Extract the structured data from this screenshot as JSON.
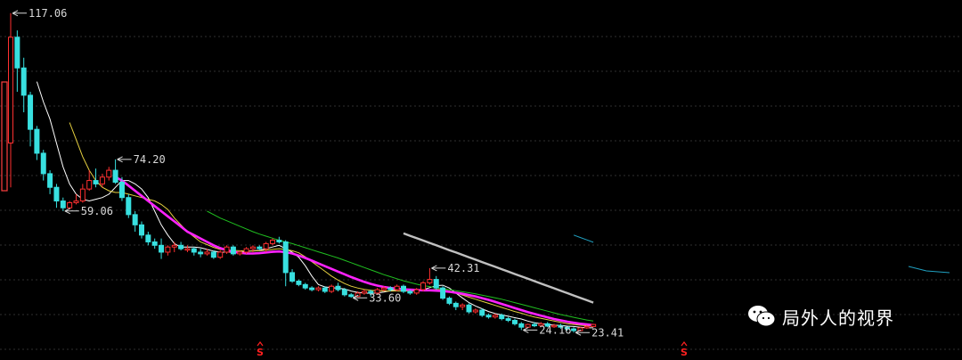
{
  "chart_data": {
    "type": "candlestick",
    "ylim": [
      20,
      120
    ],
    "grid": true,
    "colors": {
      "up": "#ff3030",
      "down": "#38e0e0",
      "ma5": "#ffffff",
      "ma10": "#e6d040",
      "ma20": "#ff22ff",
      "ma30": "#20c020",
      "ma60": "#c0c0c0",
      "ma120": "#20a0c0"
    },
    "annotations": [
      {
        "label": "117.06",
        "value": 117.06,
        "kind": "high"
      },
      {
        "label": "74.20",
        "value": 74.2,
        "kind": "high"
      },
      {
        "label": "59.06",
        "value": 59.06,
        "kind": "low"
      },
      {
        "label": "42.31",
        "value": 42.31,
        "kind": "high"
      },
      {
        "label": "33.60",
        "value": 33.6,
        "kind": "low"
      },
      {
        "label": "24.16",
        "value": 24.16,
        "kind": "low"
      },
      {
        "label": "23.41",
        "value": 23.41,
        "kind": "low"
      }
    ],
    "signals": [
      {
        "label": "S"
      },
      {
        "label": "S"
      }
    ],
    "series": [
      {
        "name": "candles",
        "values": [
          [
            79,
            117.06,
            66,
            110
          ],
          [
            110,
            112,
            94,
            101
          ],
          [
            101,
            104,
            88,
            93
          ],
          [
            93,
            94,
            78,
            83
          ],
          [
            83,
            84,
            74,
            76
          ],
          [
            76,
            77,
            68,
            70
          ],
          [
            70,
            71,
            64,
            66
          ],
          [
            66,
            67,
            60,
            62
          ],
          [
            62,
            63,
            59.06,
            60
          ],
          [
            60,
            62,
            59.5,
            61.5
          ],
          [
            61.5,
            64,
            61,
            62
          ],
          [
            62,
            67,
            61.5,
            65.5
          ],
          [
            65.5,
            71,
            65,
            68
          ],
          [
            68,
            71.5,
            66,
            67
          ],
          [
            67,
            70,
            66,
            69
          ],
          [
            69,
            72,
            68,
            71
          ],
          [
            71,
            74.2,
            67,
            67.5
          ],
          [
            67.5,
            69,
            62,
            63
          ],
          [
            63,
            64,
            57,
            58
          ],
          [
            58,
            59,
            53,
            55
          ],
          [
            55,
            56,
            51,
            52
          ],
          [
            52,
            53,
            49,
            50
          ],
          [
            50,
            51,
            48,
            49
          ],
          [
            49,
            51,
            45,
            47
          ],
          [
            47,
            49,
            46,
            48.5
          ],
          [
            48.5,
            50,
            47,
            49
          ],
          [
            49,
            50,
            47.5,
            48
          ],
          [
            48,
            49,
            47,
            48
          ],
          [
            48,
            48.5,
            46,
            47
          ],
          [
            47,
            48,
            45.5,
            46.5
          ],
          [
            46.5,
            48,
            46,
            47
          ],
          [
            47,
            47.5,
            45,
            45.5
          ],
          [
            45.5,
            47.5,
            45,
            47
          ],
          [
            47,
            49,
            46.5,
            48.5
          ],
          [
            48.5,
            49,
            46,
            46.5
          ],
          [
            46.5,
            47.5,
            46,
            47
          ],
          [
            47,
            48.5,
            46.5,
            48
          ],
          [
            48,
            49,
            47,
            48.5
          ],
          [
            48.5,
            49,
            47.5,
            48
          ],
          [
            48,
            50,
            47,
            49.5
          ],
          [
            49.5,
            51,
            49,
            50.5
          ],
          [
            50.5,
            51.5,
            49.5,
            50
          ],
          [
            50,
            50.5,
            37,
            41
          ],
          [
            41,
            42,
            38,
            38.5
          ],
          [
            38.5,
            39,
            37,
            37.5
          ],
          [
            37.5,
            38,
            36,
            36.5
          ],
          [
            36.5,
            37,
            35.5,
            36
          ],
          [
            36,
            37,
            35.5,
            36.5
          ],
          [
            36.5,
            37,
            35,
            35.5
          ],
          [
            35.5,
            37.5,
            35,
            37
          ],
          [
            37,
            38,
            35.5,
            36
          ],
          [
            36,
            36.5,
            34,
            34.5
          ],
          [
            34.5,
            35,
            33.6,
            34
          ],
          [
            34,
            35.5,
            33.8,
            35
          ],
          [
            35,
            36,
            34.5,
            35.5
          ],
          [
            35.5,
            36,
            34,
            35
          ],
          [
            35,
            36.5,
            34.5,
            36
          ],
          [
            36,
            37,
            35.5,
            36.5
          ],
          [
            36.5,
            37,
            35.5,
            36
          ],
          [
            36,
            37.5,
            35.5,
            37
          ],
          [
            37,
            37.5,
            35,
            35.5
          ],
          [
            35.5,
            36,
            34.5,
            35
          ],
          [
            35,
            36.5,
            34.5,
            36
          ],
          [
            36,
            38.5,
            35.5,
            38
          ],
          [
            38,
            42.31,
            37.5,
            39
          ],
          [
            39,
            40,
            36,
            36.5
          ],
          [
            36.5,
            37,
            33,
            33.5
          ],
          [
            33.5,
            34,
            31.5,
            32
          ],
          [
            32,
            32.5,
            30,
            31
          ],
          [
            31,
            32,
            30,
            31.5
          ],
          [
            31.5,
            32,
            29,
            29.5
          ],
          [
            29.5,
            30.5,
            29,
            30
          ],
          [
            30,
            30.5,
            28,
            28.5
          ],
          [
            28.5,
            29,
            27.5,
            28
          ],
          [
            28,
            29,
            27.5,
            28.5
          ],
          [
            28.5,
            29,
            27,
            27.5
          ],
          [
            27.5,
            28,
            26.5,
            27
          ],
          [
            27,
            27.5,
            25.5,
            26
          ],
          [
            26,
            26.5,
            24.16,
            25
          ],
          [
            25,
            26,
            24.8,
            25.8
          ],
          [
            25.8,
            26.5,
            25,
            25.5
          ],
          [
            25.5,
            26.5,
            25,
            26
          ],
          [
            26,
            26.5,
            25,
            25.3
          ],
          [
            25.3,
            26,
            24.8,
            25.5
          ],
          [
            25.5,
            26,
            24.5,
            25
          ],
          [
            25,
            25.5,
            24,
            24.5
          ],
          [
            24.5,
            25,
            23.41,
            24
          ],
          [
            24,
            25,
            23.8,
            24.8
          ],
          [
            24.8,
            25.5,
            24.5,
            25.2
          ],
          [
            25.2,
            26,
            25,
            25.8
          ]
        ]
      },
      {
        "name": "MA5",
        "values": [
          null,
          null,
          null,
          null,
          97,
          91,
          86,
          79,
          72,
          67,
          64,
          62.5,
          62,
          62.5,
          63,
          64,
          66,
          68,
          68,
          67,
          65.5,
          63,
          59,
          55,
          52,
          49.5,
          48.5,
          48.5,
          48.5,
          48.3,
          47.8,
          47.3,
          47,
          47,
          47,
          47,
          47.2,
          47.4,
          47.5,
          48,
          48.5,
          49,
          48,
          47,
          45.5,
          43,
          40,
          37.5,
          36.8,
          36.6,
          36.4,
          36.2,
          35.6,
          35.2,
          35,
          34.9,
          35,
          35.3,
          35.7,
          36,
          36.2,
          36,
          35.8,
          36,
          36.6,
          37.2,
          37.3,
          36.5,
          35,
          33.6,
          32.2,
          31.2,
          30.4,
          29.6,
          29,
          28.6,
          28.2,
          27.8,
          27.4,
          26.8,
          26.3,
          26,
          25.8,
          25.6,
          25.5,
          25.3,
          25.2,
          25,
          24.8,
          24.8
        ]
      },
      {
        "name": "MA10",
        "values": [
          null,
          null,
          null,
          null,
          null,
          null,
          null,
          null,
          null,
          85,
          80,
          75,
          71,
          68,
          66,
          65,
          64.5,
          64.5,
          64,
          63.5,
          63,
          62.5,
          62,
          61,
          59.5,
          57,
          55,
          53,
          51.5,
          50,
          49.2,
          48.4,
          47.8,
          47.6,
          47.5,
          47.4,
          47.3,
          47.3,
          47.4,
          47.6,
          47.8,
          48,
          47.8,
          47.4,
          46.8,
          45.6,
          44.2,
          42.8,
          41.4,
          40,
          38.8,
          37.8,
          37,
          36.5,
          36.1,
          35.8,
          35.7,
          35.6,
          35.6,
          35.6,
          35.6,
          35.6,
          35.6,
          35.7,
          35.9,
          36.1,
          36,
          35.6,
          35,
          34.4,
          33.8,
          33.2,
          32.6,
          32,
          31.4,
          30.8,
          30.2,
          29.6,
          29.1,
          28.5,
          28,
          27.6,
          27.2,
          26.8,
          26.4,
          26,
          25.8,
          25.6,
          25.4,
          25.3
        ]
      },
      {
        "name": "MA20",
        "values": [
          null,
          null,
          null,
          null,
          null,
          null,
          null,
          null,
          null,
          null,
          null,
          null,
          null,
          null,
          null,
          null,
          69,
          68,
          66.5,
          65,
          63.5,
          62,
          60.5,
          59,
          57.5,
          56,
          54.5,
          53,
          52,
          51,
          50,
          49,
          48.2,
          47.6,
          47.1,
          46.8,
          46.6,
          46.6,
          46.7,
          46.9,
          47.1,
          47.2,
          47,
          46.6,
          46,
          45.3,
          44.5,
          43.7,
          42.9,
          42.1,
          41.3,
          40.5,
          39.7,
          39,
          38.3,
          37.7,
          37.2,
          36.8,
          36.5,
          36.3,
          36.1,
          36,
          35.9,
          35.8,
          35.8,
          35.7,
          35.6,
          35.4,
          35.1,
          34.8,
          34.4,
          34,
          33.5,
          33,
          32.4,
          31.8,
          31.2,
          30.6,
          30,
          29.4,
          28.9,
          28.4,
          27.9,
          27.4,
          27,
          26.6,
          26.3,
          26,
          25.8,
          25.6
        ]
      },
      {
        "name": "MA30",
        "values": [
          null,
          null,
          null,
          null,
          null,
          null,
          null,
          null,
          null,
          null,
          null,
          null,
          null,
          null,
          null,
          null,
          null,
          null,
          null,
          null,
          null,
          null,
          null,
          null,
          null,
          null,
          null,
          null,
          null,
          null,
          59,
          58,
          57,
          56.2,
          55.4,
          54.6,
          53.8,
          53,
          52.3,
          51.7,
          51.1,
          50.5,
          50,
          49.5,
          48.9,
          48.3,
          47.7,
          47.1,
          46.5,
          45.9,
          45.3,
          44.6,
          43.9,
          43.2,
          42.5,
          41.8,
          41.1,
          40.4,
          39.8,
          39.2,
          38.6,
          38.1,
          37.6,
          37.2,
          36.9,
          36.6,
          36.3,
          36,
          35.7,
          35.4,
          35.1,
          34.8,
          34.4,
          34,
          33.6,
          33.2,
          32.7,
          32.2,
          31.7,
          31.2,
          30.7,
          30.2,
          29.7,
          29.2,
          28.7,
          28.3,
          27.9,
          27.5,
          27.1,
          26.8
        ]
      },
      {
        "name": "MA60",
        "values": [
          null,
          null,
          null,
          null,
          null,
          null,
          null,
          null,
          null,
          null,
          null,
          null,
          null,
          null,
          null,
          null,
          null,
          null,
          null,
          null,
          null,
          null,
          null,
          null,
          null,
          null,
          null,
          null,
          null,
          null,
          null,
          null,
          null,
          null,
          null,
          null,
          null,
          null,
          null,
          null,
          null,
          null,
          null,
          null,
          null,
          null,
          null,
          null,
          null,
          null,
          null,
          null,
          null,
          null,
          null,
          null,
          null,
          null,
          null,
          null,
          52.5,
          51.8,
          51.1,
          50.4,
          49.7,
          49,
          48.3,
          47.6,
          46.9,
          46.2,
          45.5,
          44.8,
          44.1,
          43.4,
          42.7,
          42,
          41.3,
          40.6,
          39.9,
          39.2,
          38.5,
          37.8,
          37.1,
          36.4,
          35.7,
          35,
          34.3,
          33.6,
          32.9,
          32.2
        ]
      },
      {
        "name": "MA120",
        "values": [
          null,
          null,
          null,
          null,
          null,
          null,
          null,
          null,
          null,
          null,
          null,
          null,
          null,
          null,
          null,
          null,
          null,
          null,
          null,
          null,
          null,
          null,
          null,
          null,
          null,
          null,
          null,
          null,
          null,
          null,
          null,
          null,
          null,
          null,
          null,
          null,
          null,
          null,
          null,
          null,
          null,
          null,
          null,
          null,
          null,
          null,
          null,
          null,
          null,
          null,
          null,
          null,
          null,
          null,
          null,
          null,
          null,
          null,
          null,
          null,
          null,
          null,
          null,
          null,
          null,
          null,
          null,
          null,
          null,
          null,
          null,
          null,
          null,
          null,
          null,
          null,
          null,
          null,
          null,
          null,
          null,
          null,
          null,
          null,
          null,
          null,
          52,
          51.3,
          50.6,
          49.9
        ]
      }
    ]
  },
  "watermark": {
    "text": "局外人的视界"
  }
}
